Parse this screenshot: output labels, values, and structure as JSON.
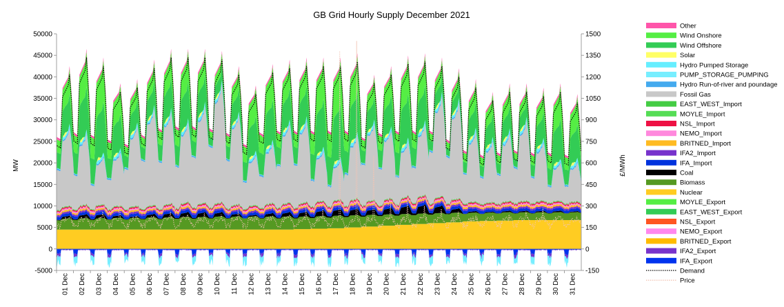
{
  "chart_data": {
    "type": "area",
    "title": "GB Grid Hourly Supply December 2021",
    "ylabel": "MW",
    "ylabel_right": "£/MWh",
    "ylim": [
      -5000,
      50000
    ],
    "ylim_right": [
      -150,
      1500
    ],
    "yticks": [
      -5000,
      0,
      5000,
      10000,
      15000,
      20000,
      25000,
      30000,
      35000,
      40000,
      45000,
      50000
    ],
    "yticks_right": [
      -150,
      0,
      150,
      300,
      450,
      600,
      750,
      900,
      1050,
      1200,
      1350,
      1500
    ],
    "categories": [
      "01 Dec",
      "02 Dec",
      "03 Dec",
      "04 Dec",
      "05 Dec",
      "06 Dec",
      "07 Dec",
      "08 Dec",
      "09 Dec",
      "10 Dec",
      "11 Dec",
      "12 Dec",
      "13 Dec",
      "14 Dec",
      "15 Dec",
      "16 Dec",
      "17 Dec",
      "18 Dec",
      "19 Dec",
      "20 Dec",
      "21 Dec",
      "22 Dec",
      "23 Dec",
      "24 Dec",
      "25 Dec",
      "26 Dec",
      "27 Dec",
      "28 Dec",
      "29 Dec",
      "30 Dec",
      "31 Dec"
    ],
    "series_daily": {
      "demand_peak_mw": [
        40500,
        44500,
        42500,
        36500,
        37500,
        42000,
        44500,
        44500,
        44500,
        44000,
        40500,
        36000,
        41000,
        42000,
        42500,
        42500,
        42500,
        43500,
        38500,
        40500,
        43000,
        43500,
        42500,
        40000,
        37500,
        34500,
        36500,
        36500,
        35500,
        36500,
        34000
      ],
      "demand_trough_mw": [
        23500,
        24500,
        24000,
        23000,
        22000,
        24000,
        25500,
        26000,
        26000,
        25500,
        24500,
        22000,
        24500,
        25000,
        25000,
        25000,
        25000,
        25000,
        23500,
        24500,
        25000,
        25000,
        25000,
        23000,
        20500,
        19500,
        20000,
        20500,
        20000,
        20000,
        19500
      ],
      "nuclear_mw": [
        4500,
        4500,
        4500,
        4500,
        4500,
        4500,
        4500,
        4500,
        4500,
        4500,
        4500,
        4500,
        4500,
        4500,
        4600,
        4700,
        4800,
        5000,
        5200,
        5400,
        5600,
        5800,
        6000,
        6200,
        6400,
        6500,
        6600,
        6700,
        6700,
        6700,
        6700
      ],
      "biomass_mw": [
        2500,
        2600,
        2600,
        2700,
        2700,
        2800,
        2800,
        2900,
        2900,
        3000,
        3000,
        3000,
        3000,
        3000,
        2900,
        2900,
        2900,
        2800,
        2700,
        2600,
        2500,
        2400,
        2300,
        2200,
        2000,
        1900,
        1900,
        1800,
        1800,
        1800,
        1800
      ],
      "coal_mw": [
        600,
        800,
        900,
        500,
        300,
        700,
        900,
        1000,
        1000,
        900,
        600,
        300,
        700,
        900,
        1000,
        1200,
        1400,
        1400,
        1200,
        1400,
        1800,
        1900,
        1600,
        900,
        300,
        200,
        300,
        300,
        300,
        300,
        200
      ],
      "price_peak_gbp": [
        200,
        220,
        260,
        320,
        230,
        230,
        260,
        240,
        250,
        240,
        270,
        230,
        220,
        230,
        300,
        280,
        1380,
        1450,
        650,
        320,
        330,
        300,
        280,
        260,
        150,
        200,
        240,
        260,
        290,
        200,
        230
      ]
    },
    "legend": [
      {
        "name": "Other",
        "color": "#ff55aa",
        "kind": "area"
      },
      {
        "name": "Wind Onshore",
        "color": "#55ee44",
        "kind": "area"
      },
      {
        "name": "Wind Offshore",
        "color": "#33cc55",
        "kind": "area"
      },
      {
        "name": "Solar",
        "color": "#ffff66",
        "kind": "area"
      },
      {
        "name": "Hydro Pumped Storage",
        "color": "#66eeff",
        "kind": "area"
      },
      {
        "name": "PUMP_STORAGE_PUMPING",
        "color": "#77eeff",
        "kind": "area"
      },
      {
        "name": "Hydro Run-of-river and poundage",
        "color": "#44aaee",
        "kind": "area"
      },
      {
        "name": "Fossil Gas",
        "color": "#c8c8c8",
        "kind": "area"
      },
      {
        "name": "EAST_WEST_Import",
        "color": "#44cc44",
        "kind": "area"
      },
      {
        "name": "MOYLE_Import",
        "color": "#55dd55",
        "kind": "area"
      },
      {
        "name": "NSL_Import",
        "color": "#ee1144",
        "kind": "area"
      },
      {
        "name": "NEMO_Import",
        "color": "#ff88dd",
        "kind": "area"
      },
      {
        "name": "BRITNED_Import",
        "color": "#ffbb22",
        "kind": "area"
      },
      {
        "name": "IFA2_Import",
        "color": "#7733cc",
        "kind": "area"
      },
      {
        "name": "IFA_Import",
        "color": "#0033dd",
        "kind": "area"
      },
      {
        "name": "Coal",
        "color": "#000000",
        "kind": "area"
      },
      {
        "name": "Biomass",
        "color": "#559922",
        "kind": "area"
      },
      {
        "name": "Nuclear",
        "color": "#ffcc22",
        "kind": "area"
      },
      {
        "name": "MOYLE_Export",
        "color": "#55ee44",
        "kind": "area"
      },
      {
        "name": "EAST_WEST_Export",
        "color": "#33cc55",
        "kind": "area"
      },
      {
        "name": "NSL_Export",
        "color": "#ff5522",
        "kind": "area"
      },
      {
        "name": "NEMO_Export",
        "color": "#ff88ee",
        "kind": "area"
      },
      {
        "name": "BRITNED_Export",
        "color": "#ffbb00",
        "kind": "area"
      },
      {
        "name": "IFA2_Export",
        "color": "#7733cc",
        "kind": "area"
      },
      {
        "name": "IFA_Export",
        "color": "#0033ee",
        "kind": "area"
      },
      {
        "name": "Demand",
        "color": "#000000",
        "kind": "dotted-line"
      },
      {
        "name": "Price",
        "color": "#f2c4b4",
        "kind": "dotted-line"
      }
    ],
    "legend_placement": "right",
    "grid": false
  }
}
